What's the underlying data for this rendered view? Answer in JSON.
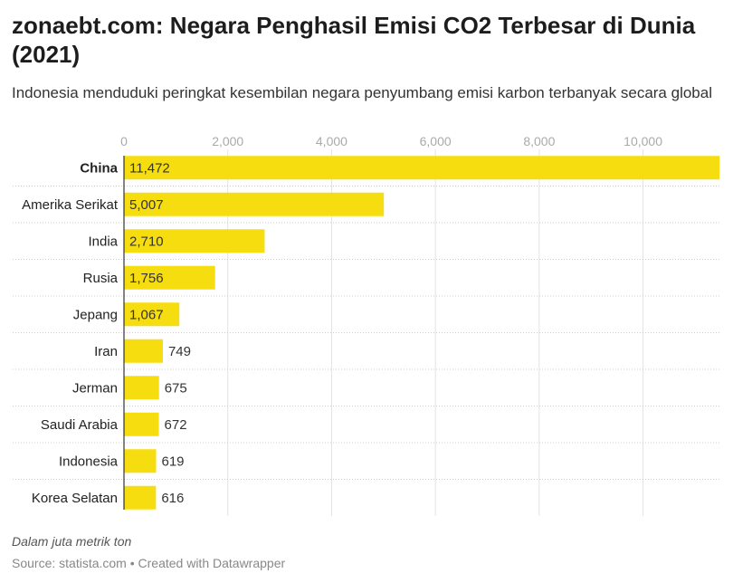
{
  "chart_data": {
    "type": "bar",
    "orientation": "horizontal",
    "title": "zonaebt.com: Negara Penghasil Emisi CO2 Terbesar di Dunia (2021)",
    "subtitle": "Indonesia menduduki peringkat kesembilan negara penyumbang emisi karbon terbanyak secara global",
    "categories": [
      "China",
      "Amerika Serikat",
      "India",
      "Rusia",
      "Jepang",
      "Iran",
      "Jerman",
      "Saudi Arabia",
      "Indonesia",
      "Korea Selatan"
    ],
    "values": [
      11472,
      5007,
      2710,
      1756,
      1067,
      749,
      675,
      672,
      619,
      616
    ],
    "value_labels": [
      "11,472",
      "5,007",
      "2,710",
      "1,756",
      "1,067",
      "749",
      "675",
      "672",
      "619",
      "616"
    ],
    "highlighted_category": "China",
    "xlim": [
      0,
      11472
    ],
    "xticks": [
      0,
      2000,
      4000,
      6000,
      8000,
      10000
    ],
    "xtick_labels": [
      "0",
      "2,000",
      "4,000",
      "6,000",
      "8,000",
      "10,000"
    ],
    "axis_position": "top",
    "grid": true,
    "bar_color": "#f5dd0f",
    "note": "Dalam juta metrik ton",
    "source": "Source: statista.com • Created with Datawrapper"
  }
}
